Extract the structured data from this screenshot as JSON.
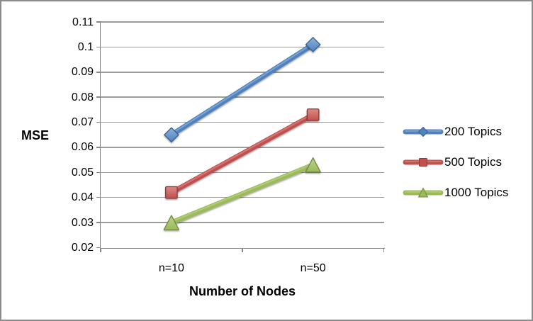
{
  "frame": {
    "background": "#ffffff",
    "border_color": "#8c8c8c"
  },
  "chart_data": {
    "type": "line",
    "title": "",
    "xlabel": "Number of Nodes",
    "ylabel": "MSE",
    "categories": [
      "n=10",
      "n=50"
    ],
    "series": [
      {
        "name": "200 Topics",
        "marker": "diamond",
        "color": "#4f81bd",
        "color_light": "#8db3dd",
        "border": "#38618f",
        "values": [
          0.065,
          0.101
        ]
      },
      {
        "name": "500 Topics",
        "marker": "square",
        "color": "#c0504d",
        "color_light": "#da8a87",
        "border": "#8e3734",
        "values": [
          0.042,
          0.073
        ]
      },
      {
        "name": "1000 Topics",
        "marker": "triangle",
        "color": "#9bbb59",
        "color_light": "#bdd289",
        "border": "#71893f",
        "values": [
          0.03,
          0.053
        ]
      }
    ],
    "ylim": [
      0.02,
      0.11
    ],
    "ytick_step": 0.01,
    "ytick_labels": [
      "0.02",
      "0.03",
      "0.04",
      "0.05",
      "0.06",
      "0.07",
      "0.08",
      "0.09",
      "0.1",
      "0.11"
    ],
    "grid": true,
    "legend_position": "right",
    "gridline_color": "#9c9c9c",
    "axis_color": "#878787"
  }
}
